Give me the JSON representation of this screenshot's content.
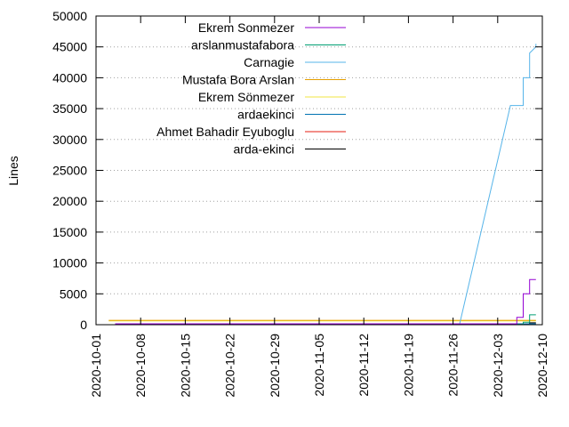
{
  "chart_data": {
    "type": "line",
    "ylabel": "Lines",
    "xlabel": "",
    "title": "",
    "ylim": [
      0,
      50000
    ],
    "xlim": [
      "2020-10-01",
      "2020-12-10"
    ],
    "y_ticks": [
      0,
      5000,
      10000,
      15000,
      20000,
      25000,
      30000,
      35000,
      40000,
      45000,
      50000
    ],
    "x_ticks": [
      "2020-10-01",
      "2020-10-08",
      "2020-10-15",
      "2020-10-22",
      "2020-10-29",
      "2020-11-05",
      "2020-11-12",
      "2020-11-19",
      "2020-11-26",
      "2020-12-03",
      "2020-12-10"
    ],
    "grid": "horizontal dotted",
    "legend_position": "top-left",
    "series": [
      {
        "name": "Ekrem Sonmezer",
        "color": "#9400d3",
        "points": [
          [
            "2020-10-04",
            150
          ],
          [
            "2020-12-06",
            150
          ],
          [
            "2020-12-06",
            1200
          ],
          [
            "2020-12-07",
            1200
          ],
          [
            "2020-12-07",
            3000
          ],
          [
            "2020-12-07",
            5000
          ],
          [
            "2020-12-08",
            5000
          ],
          [
            "2020-12-08",
            6000
          ],
          [
            "2020-12-08",
            7300
          ],
          [
            "2020-12-09",
            7300
          ]
        ]
      },
      {
        "name": "arslanmustafabora",
        "color": "#009e73",
        "points": [
          [
            "2020-10-08",
            50
          ],
          [
            "2020-12-07",
            50
          ],
          [
            "2020-12-07",
            400
          ],
          [
            "2020-12-08",
            400
          ],
          [
            "2020-12-08",
            1600
          ],
          [
            "2020-12-09",
            1600
          ]
        ]
      },
      {
        "name": "Carnagie",
        "color": "#56b4e9",
        "points": [
          [
            "2020-10-13",
            0
          ],
          [
            "2020-11-27",
            0
          ],
          [
            "2020-12-05",
            35500
          ],
          [
            "2020-12-07",
            35500
          ],
          [
            "2020-12-07",
            40000
          ],
          [
            "2020-12-08",
            40000
          ],
          [
            "2020-12-08",
            44000
          ],
          [
            "2020-12-09",
            45000
          ],
          [
            "2020-12-09",
            45500
          ]
        ]
      },
      {
        "name": "Mustafa Bora Arslan",
        "color": "#e69f00",
        "points": [
          [
            "2020-10-03",
            700
          ],
          [
            "2020-12-09",
            700
          ]
        ]
      },
      {
        "name": "Ekrem Sönmezer",
        "color": "#f0e442",
        "points": [
          [
            "2020-10-03",
            600
          ],
          [
            "2020-12-09",
            600
          ]
        ]
      },
      {
        "name": "ardaekinci",
        "color": "#0072b2",
        "points": [
          [
            "2020-10-13",
            150
          ],
          [
            "2020-12-09",
            150
          ]
        ]
      },
      {
        "name": "Ahmet Bahadir Eyuboglu",
        "color": "#e51e10",
        "points": [
          [
            "2020-10-13",
            100
          ],
          [
            "2020-12-09",
            100
          ]
        ]
      },
      {
        "name": "arda-ekinci",
        "color": "#000000",
        "points": [
          [
            "2020-10-13",
            50
          ],
          [
            "2020-12-08",
            50
          ],
          [
            "2020-12-08",
            300
          ],
          [
            "2020-12-09",
            300
          ]
        ]
      }
    ]
  }
}
